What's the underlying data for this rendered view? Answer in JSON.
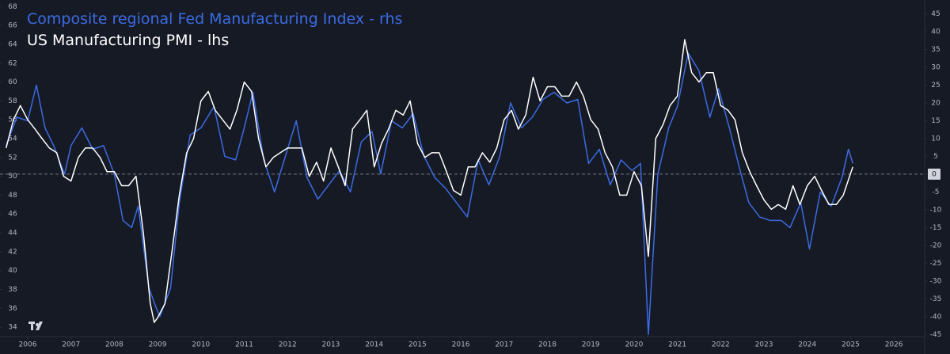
{
  "chart_data": {
    "type": "line",
    "series": [
      {
        "name": "Composite regional Fed Manufacturing Index - rhs",
        "color": "#3b6be3",
        "axis": "y2",
        "x": [
          2005.5,
          2005.75,
          2006.0,
          2006.2,
          2006.4,
          2006.6,
          2006.85,
          2007.0,
          2007.25,
          2007.5,
          2007.75,
          2008.0,
          2008.2,
          2008.4,
          2008.55,
          2008.8,
          2008.95,
          2009.05,
          2009.3,
          2009.5,
          2009.75,
          2010.0,
          2010.3,
          2010.55,
          2010.8,
          2011.0,
          2011.2,
          2011.45,
          2011.7,
          2011.95,
          2012.2,
          2012.45,
          2012.7,
          2012.95,
          2013.2,
          2013.45,
          2013.7,
          2013.95,
          2014.15,
          2014.4,
          2014.65,
          2014.9,
          2015.15,
          2015.4,
          2015.65,
          2015.9,
          2016.15,
          2016.4,
          2016.65,
          2016.9,
          2017.15,
          2017.4,
          2017.65,
          2017.9,
          2018.15,
          2018.45,
          2018.7,
          2018.95,
          2019.2,
          2019.45,
          2019.7,
          2019.95,
          2020.15,
          2020.33,
          2020.55,
          2020.8,
          2021.0,
          2021.25,
          2021.5,
          2021.75,
          2021.95,
          2022.2,
          2022.45,
          2022.65,
          2022.9,
          2023.15,
          2023.4,
          2023.6,
          2023.85,
          2024.05,
          2024.3,
          2024.55,
          2024.8,
          2024.95,
          2025.05
        ],
        "values": [
          8,
          16,
          15,
          25,
          13,
          8,
          0,
          8,
          13,
          7,
          8,
          0,
          -13,
          -15,
          -9,
          -32,
          -37,
          -40,
          -32,
          -8,
          11,
          13,
          19,
          5,
          4,
          13,
          23,
          4,
          -5,
          5,
          15,
          -1,
          -7,
          -3,
          1,
          -5,
          9,
          12,
          0,
          15,
          13,
          17,
          5,
          -1,
          -4,
          -8,
          -12,
          4,
          -3,
          5,
          20,
          13,
          16,
          21,
          23,
          20,
          21,
          3,
          7,
          -3,
          4,
          1,
          3,
          -45,
          0,
          13,
          19,
          34,
          29,
          16,
          24,
          13,
          1,
          -8,
          -12,
          -13,
          -13,
          -15,
          -8,
          -21,
          -5,
          -9,
          -1,
          7,
          3
        ]
      },
      {
        "name": "US Manufacturing PMI - lhs",
        "color": "#ffffff",
        "axis": "y",
        "x": [
          2005.5,
          2005.67,
          2005.83,
          2006.0,
          2006.17,
          2006.33,
          2006.5,
          2006.67,
          2006.83,
          2007.0,
          2007.17,
          2007.33,
          2007.5,
          2007.67,
          2007.83,
          2008.0,
          2008.17,
          2008.33,
          2008.5,
          2008.67,
          2008.83,
          2008.92,
          2009.0,
          2009.17,
          2009.33,
          2009.5,
          2009.67,
          2009.83,
          2010.0,
          2010.17,
          2010.33,
          2010.5,
          2010.67,
          2010.83,
          2011.0,
          2011.17,
          2011.33,
          2011.5,
          2011.67,
          2011.83,
          2012.0,
          2012.17,
          2012.33,
          2012.5,
          2012.67,
          2012.83,
          2013.0,
          2013.17,
          2013.33,
          2013.5,
          2013.67,
          2013.83,
          2014.0,
          2014.17,
          2014.33,
          2014.5,
          2014.67,
          2014.83,
          2015.0,
          2015.17,
          2015.33,
          2015.5,
          2015.67,
          2015.83,
          2016.0,
          2016.17,
          2016.33,
          2016.5,
          2016.67,
          2016.83,
          2017.0,
          2017.17,
          2017.33,
          2017.5,
          2017.67,
          2017.83,
          2018.0,
          2018.17,
          2018.33,
          2018.5,
          2018.67,
          2018.83,
          2019.0,
          2019.17,
          2019.33,
          2019.5,
          2019.67,
          2019.83,
          2020.0,
          2020.17,
          2020.33,
          2020.5,
          2020.67,
          2020.83,
          2021.0,
          2021.17,
          2021.33,
          2021.5,
          2021.67,
          2021.83,
          2022.0,
          2022.17,
          2022.33,
          2022.5,
          2022.67,
          2022.83,
          2023.0,
          2023.17,
          2023.33,
          2023.5,
          2023.67,
          2023.83,
          2024.0,
          2024.17,
          2024.33,
          2024.5,
          2024.67,
          2024.83,
          2025.05
        ],
        "values": [
          53,
          56,
          57.5,
          56,
          55,
          54,
          53,
          52.5,
          50,
          49.5,
          52,
          53,
          53,
          52,
          50.5,
          50.5,
          49,
          49,
          50,
          44,
          36.5,
          34.5,
          35,
          36.5,
          42,
          48,
          52.5,
          54,
          58,
          59,
          57,
          56,
          55,
          57,
          60,
          59,
          54,
          51,
          52,
          52.5,
          53,
          53,
          53,
          50,
          51.5,
          49.5,
          53,
          51,
          49,
          55,
          56,
          57,
          51,
          53.5,
          55,
          57,
          56.5,
          58,
          53.5,
          52,
          52.5,
          52.5,
          50.5,
          48.5,
          48,
          51,
          51,
          52.5,
          51.5,
          53,
          56,
          57,
          55,
          56.5,
          60.5,
          58,
          59.5,
          59.5,
          58.5,
          58.5,
          60,
          58.5,
          56,
          55,
          52.5,
          51,
          48,
          48,
          50.5,
          49,
          41.5,
          54,
          55.5,
          57.5,
          58.5,
          64.5,
          61,
          60,
          61,
          61,
          57.5,
          57,
          56,
          52.5,
          50.5,
          49,
          47.5,
          46.5,
          47,
          46.5,
          49,
          47,
          49,
          50,
          48.5,
          47,
          47,
          48,
          51
        ]
      }
    ],
    "xlim": [
      2005.36,
      2026.71
    ],
    "xticks": [
      2006,
      2007,
      2008,
      2009,
      2010,
      2011,
      2012,
      2013,
      2014,
      2015,
      2016,
      2017,
      2018,
      2019,
      2020,
      2021,
      2022,
      2023,
      2024,
      2025,
      2026
    ],
    "ylim": [
      33,
      68.7
    ],
    "yticks": [
      34,
      36,
      38,
      40,
      42,
      44,
      46,
      48,
      50,
      52,
      54,
      56,
      58,
      60,
      62,
      64,
      66,
      68
    ],
    "y2lim": [
      -45.6,
      48.9
    ],
    "y2ticks": [
      -45,
      -40,
      -35,
      -30,
      -25,
      -20,
      -15,
      -10,
      -5,
      0,
      5,
      10,
      15,
      20,
      25,
      30,
      35,
      40,
      45
    ],
    "grid": false
  }
}
